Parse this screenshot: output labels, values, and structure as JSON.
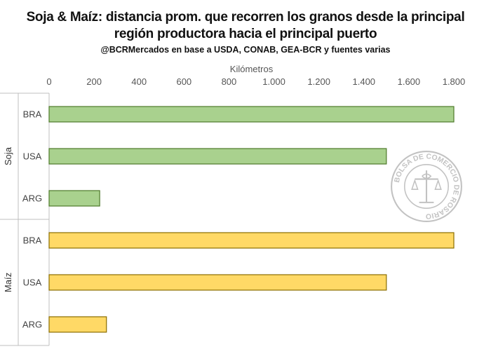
{
  "chart_data": {
    "type": "bar",
    "orientation": "horizontal",
    "title": "Soja & Maíz: distancia prom. que recorren los granos desde la principal",
    "title_line2": "región productora hacia el principal puerto",
    "subtitle": "@BCRMercados en base a USDA, CONAB, GEA-BCR y fuentes varias",
    "xlabel": "Kilómetros",
    "xlim": [
      0,
      1800
    ],
    "xticks": [
      "0",
      "200",
      "400",
      "600",
      "800",
      "1.000",
      "1.200",
      "1.400",
      "1.600",
      "1.800"
    ],
    "grid": false,
    "groups": [
      {
        "name": "Soja",
        "color": "#a9d18e",
        "border": "#4e7a2a",
        "categories": [
          "BRA",
          "USA",
          "ARG"
        ],
        "values": [
          1800,
          1500,
          225
        ]
      },
      {
        "name": "Maíz",
        "color": "#ffd966",
        "border": "#8a6d00",
        "categories": [
          "BRA",
          "USA",
          "ARG"
        ],
        "values": [
          1800,
          1500,
          255
        ]
      }
    ]
  },
  "watermark": {
    "text": "BOLSA DE COMERCIO DE ROSARIO"
  }
}
